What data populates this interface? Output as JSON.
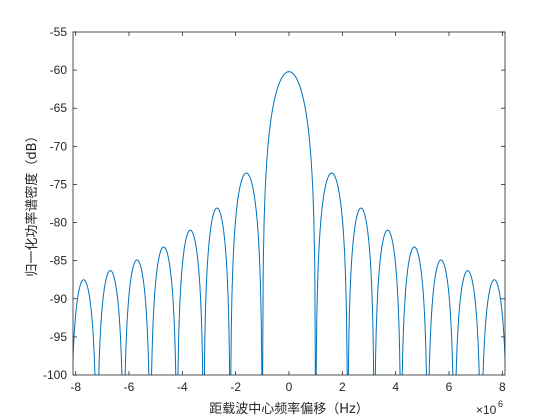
{
  "chart_data": {
    "type": "line",
    "title": "",
    "xlabel": "距载波中心频率偏移（Hz）",
    "ylabel": "归一化功率谱密度（dB）",
    "x_exponent_label": "×10",
    "x_exponent_power": "6",
    "xlim": [
      -8.1,
      8.1
    ],
    "ylim": [
      -100,
      -55
    ],
    "x_ticks": [
      -8,
      -6,
      -4,
      -2,
      0,
      2,
      4,
      6,
      8
    ],
    "x_tick_labels": [
      "-8",
      "-6",
      "-4",
      "-2",
      "0",
      "2",
      "4",
      "6",
      "8"
    ],
    "y_ticks": [
      -100,
      -95,
      -90,
      -85,
      -80,
      -75,
      -70,
      -65,
      -60,
      -55
    ],
    "y_tick_labels": [
      "-100",
      "-95",
      "-90",
      "-85",
      "-80",
      "-75",
      "-70",
      "-65",
      "-60",
      "-55"
    ],
    "grid": false,
    "line_color": "#0072BD",
    "series": [
      {
        "lobes": [
          {
            "null_left": -8.2,
            "null_right": -7.2,
            "peak": -87.5
          },
          {
            "null_left": -7.2,
            "null_right": -6.2,
            "peak": -86.3
          },
          {
            "null_left": -6.2,
            "null_right": -5.2,
            "peak": -84.9
          },
          {
            "null_left": -5.2,
            "null_right": -4.2,
            "peak": -83.2
          },
          {
            "null_left": -4.2,
            "null_right": -3.2,
            "peak": -81.0
          },
          {
            "null_left": -3.2,
            "null_right": -2.2,
            "peak": -78.1
          },
          {
            "null_left": -2.2,
            "null_right": -1.0,
            "peak": -73.5
          },
          {
            "null_left": -1.0,
            "null_right": 1.0,
            "peak": -60.2
          },
          {
            "null_left": 1.0,
            "null_right": 2.2,
            "peak": -73.5
          },
          {
            "null_left": 2.2,
            "null_right": 3.2,
            "peak": -78.1
          },
          {
            "null_left": 3.2,
            "null_right": 4.2,
            "peak": -81.0
          },
          {
            "null_left": 4.2,
            "null_right": 5.2,
            "peak": -83.2
          },
          {
            "null_left": 5.2,
            "null_right": 6.2,
            "peak": -84.9
          },
          {
            "null_left": 6.2,
            "null_right": 7.2,
            "peak": -86.3
          },
          {
            "null_left": 7.2,
            "null_right": 8.2,
            "peak": -87.5
          }
        ]
      }
    ]
  }
}
